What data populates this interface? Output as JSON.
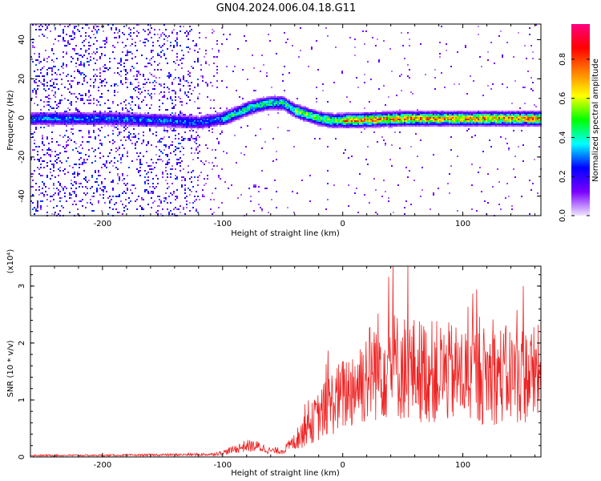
{
  "title": "GN04.2024.006.04.18.G11",
  "chart_data": [
    {
      "type": "heatmap",
      "xlabel": "Height of straight line (km)",
      "ylabel": "Frequency (Hz)",
      "xlim": [
        -260,
        165
      ],
      "ylim": [
        -50,
        48
      ],
      "x_ticks": [
        -200,
        -100,
        0,
        100
      ],
      "y_ticks": [
        -40,
        -20,
        0,
        20,
        40
      ],
      "colorbar": {
        "label": "Normalized spectral amplitude",
        "range": [
          0,
          0.98
        ],
        "ticks": [
          0.0,
          0.2,
          0.4,
          0.6,
          0.8
        ],
        "colormap": [
          "#f0e6ff",
          "#7a00ff",
          "#0000ff",
          "#00ffff",
          "#00ff00",
          "#ffff00",
          "#ff8000",
          "#ff0000",
          "#ff0080"
        ]
      },
      "ridge": {
        "x": [
          -260,
          -200,
          -150,
          -120,
          -100,
          -80,
          -70,
          -60,
          -50,
          -40,
          -30,
          -20,
          -10,
          0,
          50,
          100,
          165
        ],
        "y": [
          0,
          0,
          -1,
          -2,
          0,
          5,
          7,
          8,
          8,
          4,
          2,
          0,
          -1,
          -1,
          0,
          0,
          0
        ]
      }
    },
    {
      "type": "line",
      "xlabel": "Height of straight line (km)",
      "ylabel": "SNR (10 * v/v)",
      "y_multiplier": "(x10⁴)",
      "xlim": [
        -260,
        165
      ],
      "ylim": [
        0,
        3.35
      ],
      "x_ticks": [
        -200,
        -100,
        0,
        100
      ],
      "y_ticks": [
        0,
        1,
        2,
        3
      ],
      "series": [
        {
          "color": "#ee2222",
          "envelope": {
            "x": [
              -260,
              -200,
              -150,
              -110,
              -100,
              -90,
              -80,
              -70,
              -60,
              -50,
              -40,
              -30,
              -20,
              -10,
              0,
              10,
              20,
              30,
              40,
              60,
              80,
              100,
              120,
              140,
              165
            ],
            "y": [
              0.03,
              0.03,
              0.04,
              0.05,
              0.08,
              0.15,
              0.22,
              0.2,
              0.12,
              0.12,
              0.3,
              0.55,
              0.8,
              1.05,
              1.2,
              1.4,
              1.6,
              1.8,
              1.8,
              1.7,
              1.65,
              1.6,
              1.6,
              1.6,
              1.6
            ]
          }
        }
      ]
    }
  ]
}
